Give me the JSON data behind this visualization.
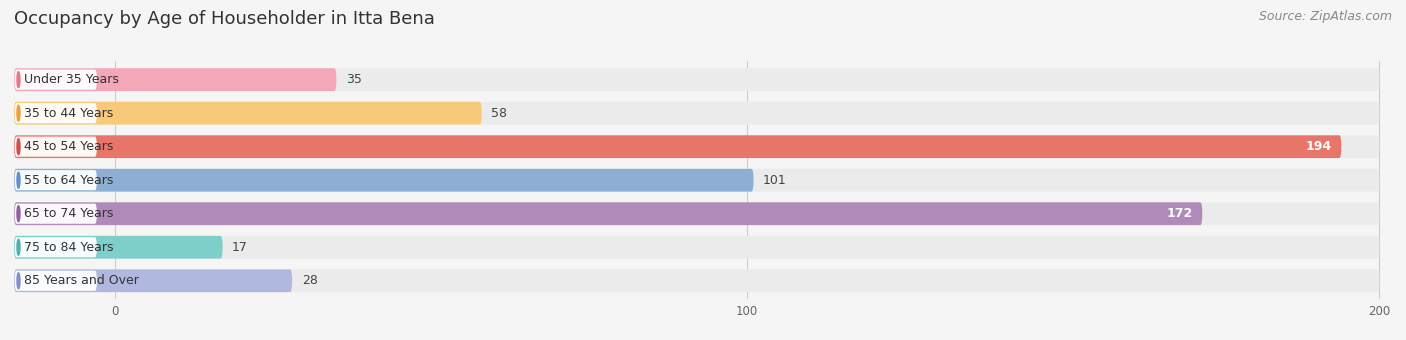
{
  "title": "Occupancy by Age of Householder in Itta Bena",
  "source": "Source: ZipAtlas.com",
  "categories": [
    "Under 35 Years",
    "35 to 44 Years",
    "45 to 54 Years",
    "55 to 64 Years",
    "65 to 74 Years",
    "75 to 84 Years",
    "85 Years and Over"
  ],
  "values": [
    35,
    58,
    194,
    101,
    172,
    17,
    28
  ],
  "bar_colors": [
    "#f4a7b9",
    "#f9c97a",
    "#e8756a",
    "#8dafd4",
    "#b08ab8",
    "#7ececa",
    "#b0b8e0"
  ],
  "label_dot_colors": [
    "#e8758a",
    "#f0a030",
    "#d05045",
    "#6090c8",
    "#9060a0",
    "#50b0b0",
    "#8090c8"
  ],
  "bar_bg_color": "#ebebeb",
  "xlim_min": 0,
  "xlim_max": 200,
  "xticks": [
    0,
    100,
    200
  ],
  "title_fontsize": 13,
  "source_fontsize": 9,
  "label_fontsize": 9,
  "value_fontsize": 9,
  "bar_height": 0.68,
  "background_color": "#f5f5f5"
}
